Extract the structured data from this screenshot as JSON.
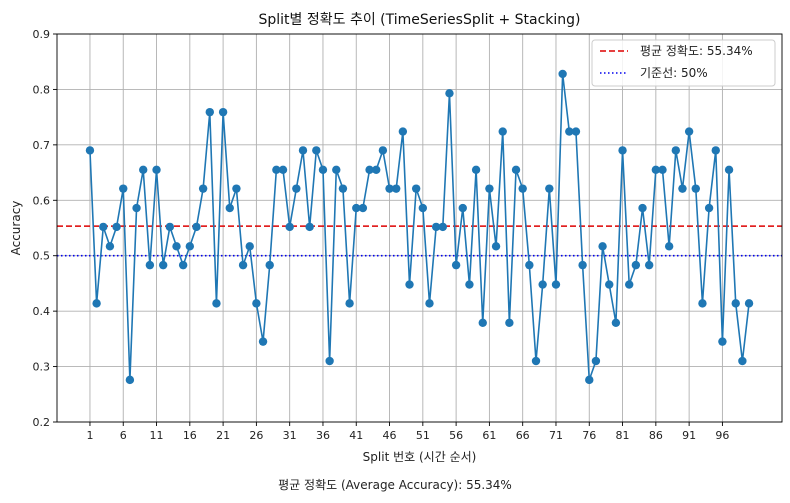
{
  "chart_data": {
    "type": "line",
    "title": "Split별 정확도 추이 (TimeSeriesSplit + Stacking)",
    "xlabel": "Split 번호 (시간 순서)",
    "ylabel": "Accuracy",
    "footer": "평균 정확도 (Average Accuracy): 55.34%",
    "xlim": [
      -3.95,
      104.95
    ],
    "ylim": [
      0.2,
      0.9
    ],
    "xticks": [
      1,
      6,
      11,
      16,
      21,
      26,
      31,
      36,
      41,
      46,
      51,
      56,
      61,
      66,
      71,
      76,
      81,
      86,
      91,
      96
    ],
    "yticks": [
      0.2,
      0.3,
      0.4,
      0.5,
      0.6,
      0.7,
      0.8,
      0.9
    ],
    "ytick_labels": [
      "0.2",
      "0.3",
      "0.4",
      "0.5",
      "0.6",
      "0.7",
      "0.8",
      "0.9"
    ],
    "grid": true,
    "legend_position": "top-right",
    "series": [
      {
        "name": "",
        "color": "#1f77b4",
        "marker": "circle",
        "x": [
          1,
          2,
          3,
          4,
          5,
          6,
          7,
          8,
          9,
          10,
          11,
          12,
          13,
          14,
          15,
          16,
          17,
          18,
          19,
          20,
          21,
          22,
          23,
          24,
          25,
          26,
          27,
          28,
          29,
          30,
          31,
          32,
          33,
          34,
          35,
          36,
          37,
          38,
          39,
          40,
          41,
          42,
          43,
          44,
          45,
          46,
          47,
          48,
          49,
          50,
          51,
          52,
          53,
          54,
          55,
          56,
          57,
          58,
          59,
          60,
          61,
          62,
          63,
          64,
          65,
          66,
          67,
          68,
          69,
          70,
          71,
          72,
          73,
          74,
          75,
          76,
          77,
          78,
          79,
          80,
          81,
          82,
          83,
          84,
          85,
          86,
          87,
          88,
          89,
          90,
          91,
          92,
          93,
          94,
          95,
          96,
          97,
          98,
          99,
          100
        ],
        "y": [
          0.69,
          0.414,
          0.552,
          0.517,
          0.552,
          0.621,
          0.276,
          0.586,
          0.655,
          0.483,
          0.655,
          0.483,
          0.552,
          0.517,
          0.483,
          0.517,
          0.552,
          0.621,
          0.759,
          0.414,
          0.759,
          0.586,
          0.621,
          0.483,
          0.517,
          0.414,
          0.345,
          0.483,
          0.655,
          0.655,
          0.552,
          0.621,
          0.69,
          0.552,
          0.69,
          0.655,
          0.31,
          0.655,
          0.621,
          0.414,
          0.586,
          0.586,
          0.655,
          0.655,
          0.69,
          0.621,
          0.621,
          0.724,
          0.448,
          0.621,
          0.586,
          0.414,
          0.552,
          0.552,
          0.793,
          0.483,
          0.586,
          0.448,
          0.655,
          0.379,
          0.621,
          0.517,
          0.724,
          0.379,
          0.655,
          0.621,
          0.483,
          0.31,
          0.448,
          0.621,
          0.448,
          0.828,
          0.724,
          0.724,
          0.483,
          0.276,
          0.31,
          0.517,
          0.448,
          0.379,
          0.69,
          0.448,
          0.483,
          0.586,
          0.483,
          0.655,
          0.655,
          0.517,
          0.69,
          0.621,
          0.724,
          0.621,
          0.414,
          0.586,
          0.69,
          0.345,
          0.655,
          0.414,
          0.31,
          0.414
        ]
      }
    ],
    "reference_lines": [
      {
        "name": "평균 정확도: 55.34%",
        "value": 0.5534,
        "color": "#dd0000",
        "style": "dashed"
      },
      {
        "name": "기준선: 50%",
        "value": 0.5,
        "color": "#0000ee",
        "style": "dotted"
      }
    ]
  }
}
